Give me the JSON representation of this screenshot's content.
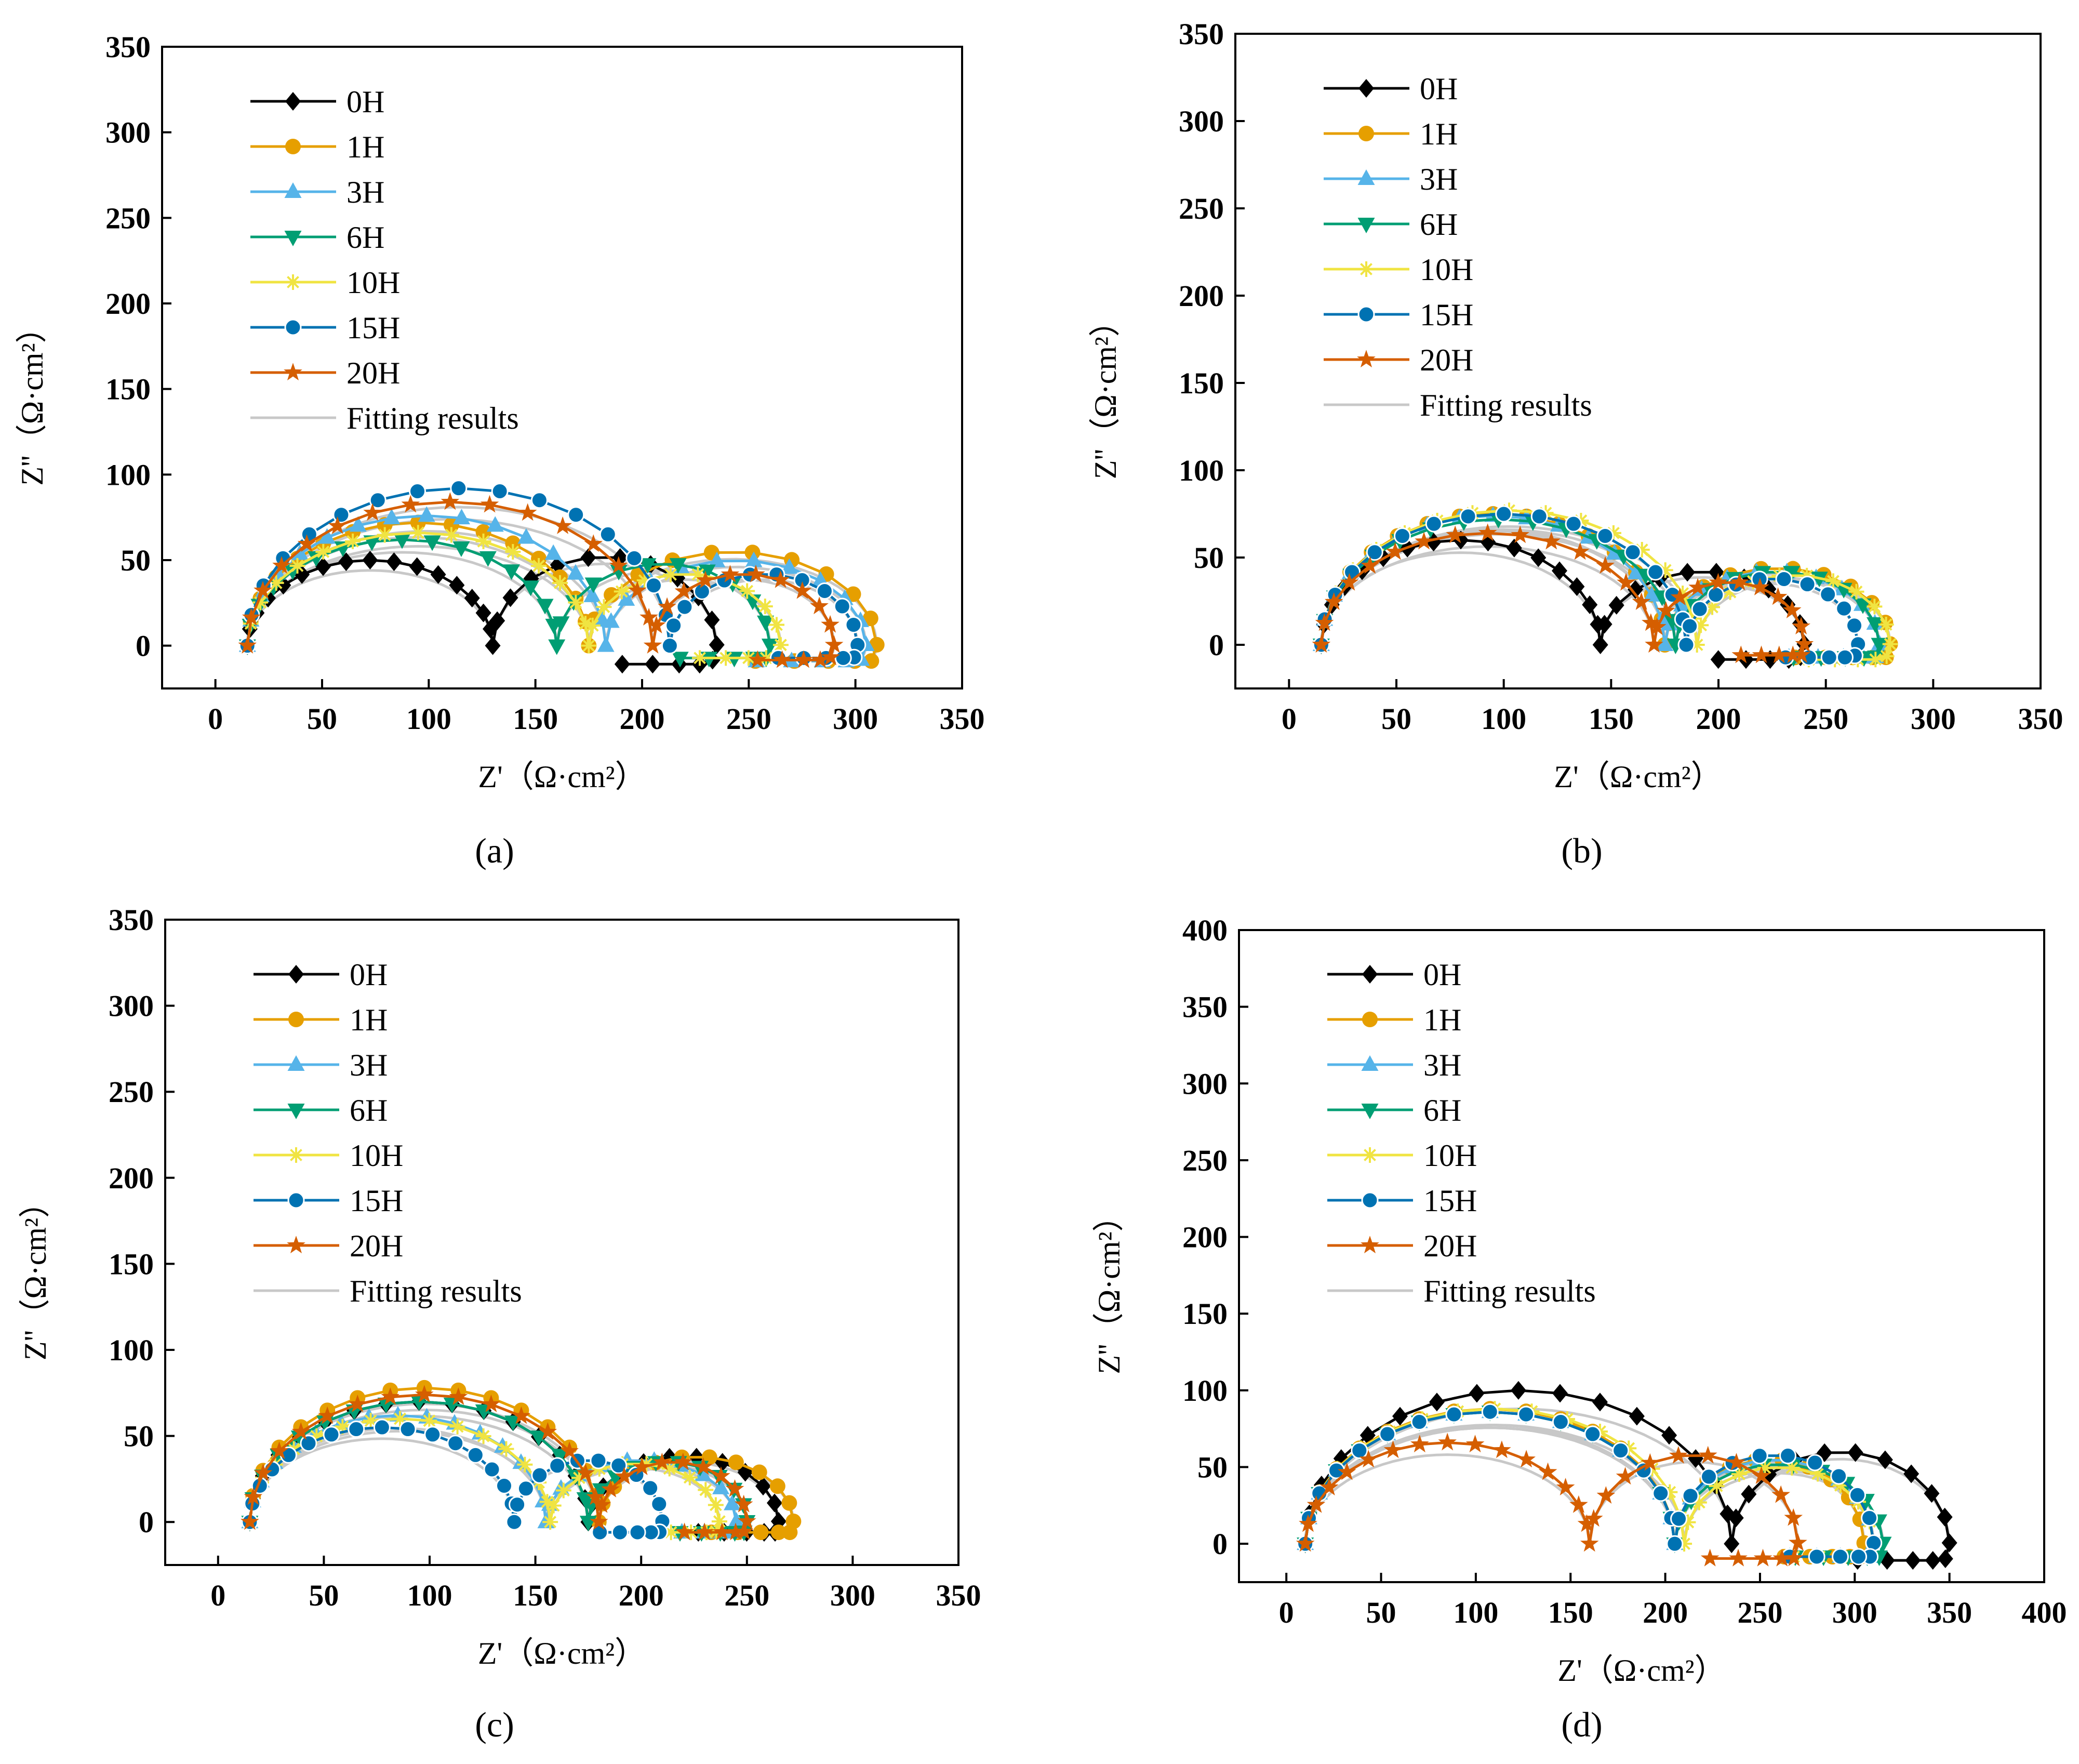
{
  "figure": {
    "legend_title_free": true,
    "series_styles": [
      {
        "name": "0H",
        "color": "#000000",
        "marker": "diamond"
      },
      {
        "name": "1H",
        "color": "#E69F00",
        "marker": "circle"
      },
      {
        "name": "3H",
        "color": "#56B4E9",
        "marker": "triangle-up"
      },
      {
        "name": "6H",
        "color": "#009E73",
        "marker": "triangle-down"
      },
      {
        "name": "10H",
        "color": "#F0E442",
        "marker": "asterisk"
      },
      {
        "name": "15H",
        "color": "#0072B2",
        "marker": "ball"
      },
      {
        "name": "20H",
        "color": "#D55E00",
        "marker": "star"
      }
    ],
    "fit_label": "Fitting results",
    "fit_color": "#C8C8C8"
  },
  "chart_data": [
    {
      "type": "scatter",
      "panel": "(a)",
      "xlabel": "Z'（Ω·cm²）",
      "ylabel": "Z''（Ω·cm²）",
      "xlim": [
        -25,
        350
      ],
      "ylim": [
        -25,
        350
      ],
      "xticks": [
        0,
        50,
        100,
        150,
        200,
        250,
        300,
        350
      ],
      "yticks": [
        0,
        50,
        100,
        150,
        200,
        250,
        300,
        350
      ],
      "legend_position": "top-left",
      "series": [
        {
          "name": "0H",
          "Rs": 15,
          "R1": 115,
          "h1": 50,
          "R2": 105,
          "h2": 52,
          "tail": 18
        },
        {
          "name": "1H",
          "Rs": 15,
          "R1": 160,
          "h1": 72,
          "R2": 135,
          "h2": 55,
          "tail": 15
        },
        {
          "name": "3H",
          "Rs": 15,
          "R1": 168,
          "h1": 76,
          "R2": 122,
          "h2": 50,
          "tail": 15
        },
        {
          "name": "6H",
          "Rs": 15,
          "R1": 145,
          "h1": 62,
          "R2": 100,
          "h2": 48,
          "tail": 12
        },
        {
          "name": "10H",
          "Rs": 15,
          "R1": 160,
          "h1": 66,
          "R2": 90,
          "h2": 42,
          "tail": 12
        },
        {
          "name": "15H",
          "Rs": 15,
          "R1": 198,
          "h1": 92,
          "R2": 88,
          "h2": 42,
          "tail": 12
        },
        {
          "name": "20H",
          "Rs": 15,
          "R1": 190,
          "h1": 84,
          "R2": 85,
          "h2": 42,
          "tail": 14
        }
      ]
    },
    {
      "type": "scatter",
      "panel": "(b)",
      "xlabel": "Z'（Ω·cm²）",
      "ylabel": "Z''（Ω·cm²）",
      "xlim": [
        -25,
        350
      ],
      "ylim": [
        -25,
        350
      ],
      "xticks": [
        0,
        50,
        100,
        150,
        200,
        250,
        300,
        350
      ],
      "yticks": [
        0,
        50,
        100,
        150,
        200,
        250,
        300,
        350
      ],
      "legend_position": "top-left",
      "series": [
        {
          "name": "0H",
          "Rs": 15,
          "R1": 130,
          "h1": 60,
          "R2": 95,
          "h2": 42,
          "tail": 14
        },
        {
          "name": "1H",
          "Rs": 15,
          "R1": 160,
          "h1": 75,
          "R2": 105,
          "h2": 44,
          "tail": 12
        },
        {
          "name": "3H",
          "Rs": 15,
          "R1": 160,
          "h1": 74,
          "R2": 100,
          "h2": 42,
          "tail": 12
        },
        {
          "name": "6H",
          "Rs": 15,
          "R1": 165,
          "h1": 72,
          "R2": 95,
          "h2": 42,
          "tail": 12
        },
        {
          "name": "10H",
          "Rs": 15,
          "R1": 175,
          "h1": 77,
          "R2": 90,
          "h2": 40,
          "tail": 14
        },
        {
          "name": "15H",
          "Rs": 15,
          "R1": 170,
          "h1": 75,
          "R2": 80,
          "h2": 38,
          "tail": 12
        },
        {
          "name": "20H",
          "Rs": 15,
          "R1": 155,
          "h1": 64,
          "R2": 70,
          "h2": 36,
          "tail": 10
        }
      ]
    },
    {
      "type": "scatter",
      "panel": "(c)",
      "xlabel": "Z'（Ω·cm²）",
      "ylabel": "Z''（Ω·cm²）",
      "xlim": [
        -25,
        350
      ],
      "ylim": [
        -25,
        350
      ],
      "xticks": [
        0,
        50,
        100,
        150,
        200,
        250,
        300,
        350
      ],
      "yticks": [
        0,
        50,
        100,
        150,
        200,
        250,
        300,
        350
      ],
      "legend_position": "top-left",
      "series": [
        {
          "name": "0H",
          "Rs": 15,
          "R1": 160,
          "h1": 70,
          "R2": 90,
          "h2": 38,
          "tail": 10
        },
        {
          "name": "1H",
          "Rs": 15,
          "R1": 165,
          "h1": 78,
          "R2": 92,
          "h2": 38,
          "tail": 10
        },
        {
          "name": "3H",
          "Rs": 15,
          "R1": 140,
          "h1": 62,
          "R2": 90,
          "h2": 36,
          "tail": 10
        },
        {
          "name": "6H",
          "Rs": 15,
          "R1": 160,
          "h1": 70,
          "R2": 75,
          "h2": 35,
          "tail": 10
        },
        {
          "name": "10H",
          "Rs": 15,
          "R1": 142,
          "h1": 60,
          "R2": 80,
          "h2": 34,
          "tail": 10
        },
        {
          "name": "15H",
          "Rs": 15,
          "R1": 125,
          "h1": 55,
          "R2": 70,
          "h2": 36,
          "tail": 10
        },
        {
          "name": "20H",
          "Rs": 15,
          "R1": 165,
          "h1": 74,
          "R2": 70,
          "h2": 35,
          "tail": 10
        }
      ]
    },
    {
      "type": "scatter",
      "panel": "(d)",
      "xlabel": "Z'（Ω·cm²）",
      "ylabel": "Z''（Ω·cm²）",
      "xlim": [
        -25,
        400
      ],
      "ylim": [
        -25,
        400
      ],
      "xticks": [
        0,
        50,
        100,
        150,
        200,
        250,
        300,
        350,
        400
      ],
      "yticks": [
        0,
        50,
        100,
        150,
        200,
        250,
        300,
        350,
        400
      ],
      "legend_position": "top-left",
      "series": [
        {
          "name": "0H",
          "Rs": 10,
          "R1": 225,
          "h1": 100,
          "R2": 115,
          "h2": 60,
          "tail": 18
        },
        {
          "name": "1H",
          "Rs": 10,
          "R1": 195,
          "h1": 88,
          "R2": 100,
          "h2": 55,
          "tail": 14
        },
        {
          "name": "3H",
          "Rs": 10,
          "R1": 195,
          "h1": 86,
          "R2": 105,
          "h2": 55,
          "tail": 14
        },
        {
          "name": "6H",
          "Rs": 10,
          "R1": 195,
          "h1": 86,
          "R2": 110,
          "h2": 52,
          "tail": 14
        },
        {
          "name": "10H",
          "Rs": 10,
          "R1": 200,
          "h1": 88,
          "R2": 100,
          "h2": 50,
          "tail": 14
        },
        {
          "name": "15H",
          "Rs": 10,
          "R1": 195,
          "h1": 86,
          "R2": 105,
          "h2": 58,
          "tail": 14
        },
        {
          "name": "20H",
          "Rs": 10,
          "R1": 150,
          "h1": 66,
          "R2": 110,
          "h2": 58,
          "tail": 16
        }
      ]
    }
  ]
}
